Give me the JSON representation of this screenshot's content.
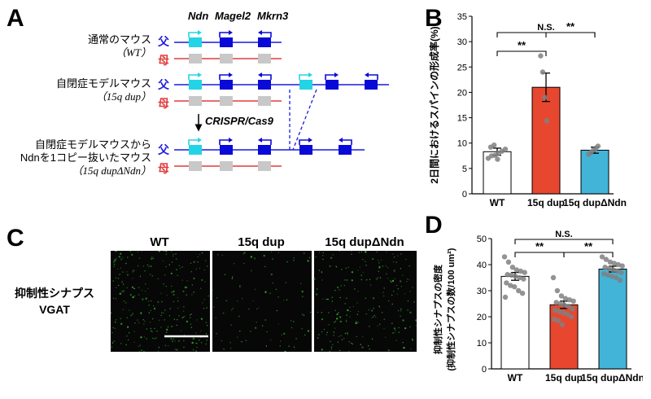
{
  "panels": {
    "a": {
      "label": "A",
      "genes": [
        "Ndn",
        "Magel2",
        "Mkrn3"
      ],
      "mice": [
        {
          "name": "通常のマウス",
          "sub": "（WT）",
          "dup": false,
          "ndn_deleted": false
        },
        {
          "name": "自閉症モデルマウス",
          "sub": "（15q dup）",
          "dup": true,
          "ndn_deleted": false
        },
        {
          "name_line1": "自閉症モデルマウスから",
          "name_line2": "Ndnを1コピー抜いたマウス",
          "sub": "（15q dupΔNdn）",
          "dup": true,
          "ndn_deleted": true
        }
      ],
      "father": "父",
      "mother": "母",
      "crispr": "CRISPR/Cas9",
      "colors": {
        "ndn": "#22d4e6",
        "gene": "#0a0ad8",
        "paternal_line": "#1a1ae0",
        "maternal_line": "#e23b3b",
        "silent": "#c8c8c8",
        "father_text": "#1a1ae0",
        "mother_text": "#e23b3b"
      }
    },
    "b": {
      "label": "B"
    },
    "c": {
      "label": "C",
      "row_label_line1": "抑制性シナプス",
      "row_label_line2": "VGAT",
      "columns": [
        "WT",
        "15q dup",
        "15q dupΔNdn"
      ],
      "colors": {
        "background": "#070707",
        "punctum": "#2faa2a",
        "scale_bar": "#ffffff"
      }
    },
    "d": {
      "label": "D"
    }
  },
  "chart_data": [
    {
      "panel": "B",
      "type": "bar",
      "categories": [
        "WT",
        "15q dup",
        "15q dupΔNdn"
      ],
      "values": [
        8.3,
        21.0,
        8.6
      ],
      "errors": [
        0.7,
        2.8,
        0.6
      ],
      "colors": [
        "#ffffff",
        "#e8472f",
        "#42b4d8"
      ],
      "points": [
        [
          7.0,
          7.5,
          7.6,
          8.0,
          8.4,
          8.8,
          9.2,
          9.6,
          6.8
        ],
        [
          27.2,
          24.0,
          19.0,
          14.4
        ],
        [
          7.8,
          8.2,
          8.6,
          9.0,
          9.4
        ]
      ],
      "ylabel": "2日間におけるスパインの形成率(%)",
      "ylim": [
        0,
        35
      ],
      "yticks": [
        0,
        5,
        10,
        15,
        20,
        25,
        30,
        35
      ],
      "significance": [
        {
          "from": 0,
          "to": 1,
          "label": "**"
        },
        {
          "from": 1,
          "to": 2,
          "label": "**"
        },
        {
          "from": 0,
          "to": 2,
          "label": "N.S."
        }
      ]
    },
    {
      "panel": "D",
      "type": "bar",
      "categories": [
        "WT",
        "15q dup",
        "15q dupΔNdn"
      ],
      "values": [
        35.5,
        24.6,
        38.3
      ],
      "errors": [
        1.5,
        1.4,
        1.1
      ],
      "colors": [
        "#ffffff",
        "#e8472f",
        "#42b4d8"
      ],
      "points": [
        [
          43,
          41,
          39,
          38,
          37.5,
          37,
          36.2,
          36,
          35.5,
          35,
          34.5,
          33,
          32,
          31.5,
          30,
          29,
          27.5
        ],
        [
          35,
          30,
          28,
          27,
          26.5,
          26,
          25.5,
          25,
          24.5,
          24,
          23,
          22.5,
          22,
          21.5,
          21,
          20,
          19,
          18.5,
          17
        ],
        [
          43,
          42,
          41,
          40.5,
          40,
          39.5,
          39,
          38.5,
          38,
          37.5,
          37,
          36.5,
          36,
          35.5,
          35,
          34
        ]
      ],
      "ylabel_line1": "抑制性シナプスの密度",
      "ylabel_line2": "(抑制性シナプスの数/100 um²)",
      "ylim": [
        0,
        50
      ],
      "yticks": [
        0,
        10,
        20,
        30,
        40,
        50
      ],
      "significance": [
        {
          "from": 0,
          "to": 1,
          "label": "**"
        },
        {
          "from": 1,
          "to": 2,
          "label": "**"
        },
        {
          "from": 0,
          "to": 2,
          "label": "N.S."
        }
      ]
    }
  ]
}
